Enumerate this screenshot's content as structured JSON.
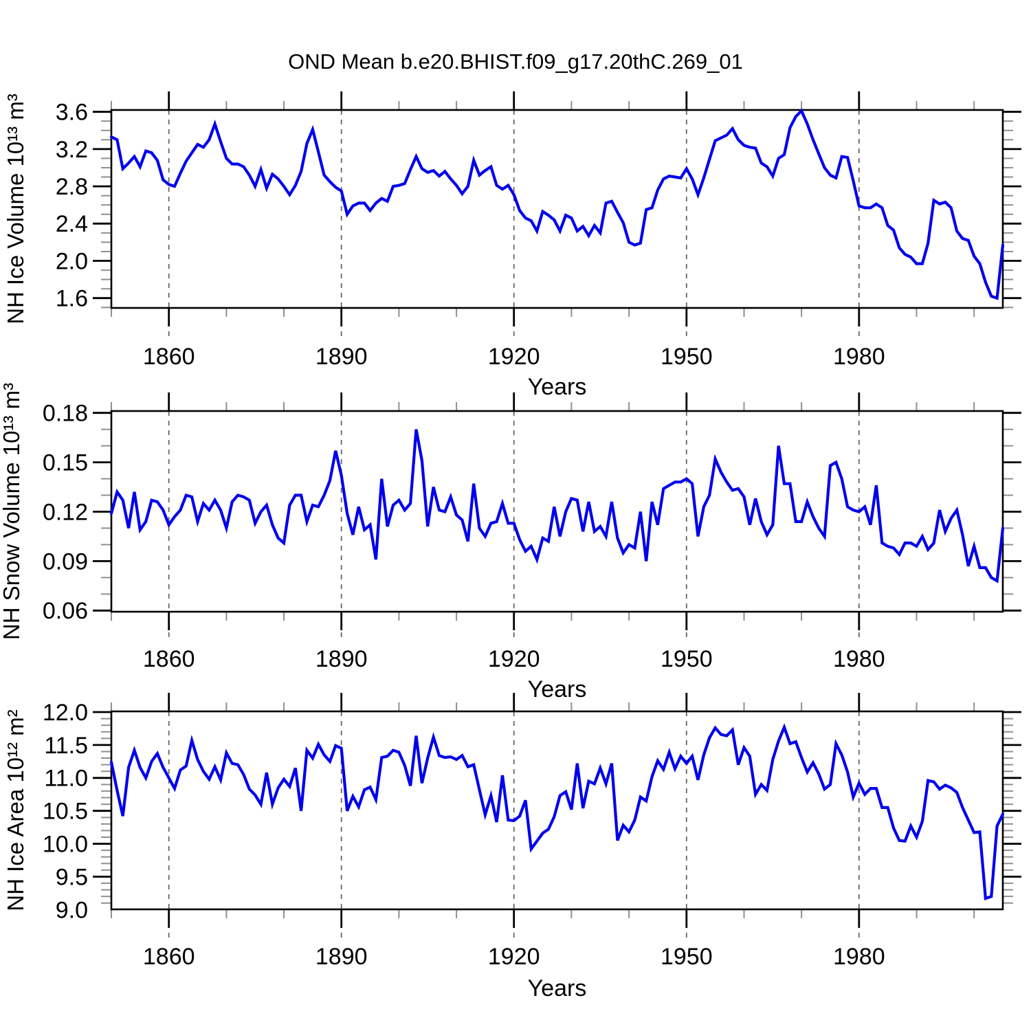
{
  "header": {
    "title": "OND Mean b.e20.BHIST.f09_g17.20thC.269_01"
  },
  "chart_data": [
    {
      "type": "line",
      "panel": "nh-ice-volume",
      "ylabel": "NH Ice Volume 10¹³ m³",
      "xlabel": "Years",
      "x_start": 1850,
      "x_step": 1,
      "xlim": [
        1850,
        2005
      ],
      "ylim": [
        1.49,
        3.62
      ],
      "xticks_major": [
        1860,
        1890,
        1920,
        1950,
        1980
      ],
      "xtick_labels": [
        "1860",
        "1890",
        "1920",
        "1950",
        "1980"
      ],
      "xtick_minor_step": 10,
      "yticks_major": [
        3.6,
        3.2,
        2.8,
        2.4,
        2.0,
        1.6
      ],
      "ytick_labels": [
        "3.6",
        "3.2",
        "2.8",
        "2.4",
        "2.0",
        "1.6"
      ],
      "ytick_minor_step": 0.1,
      "grid": "dashed vertical at major x ticks",
      "legend": "none",
      "line_color": "#0000ee",
      "values": [
        3.33,
        3.3,
        2.99,
        3.05,
        3.12,
        3.01,
        3.18,
        3.16,
        3.08,
        2.87,
        2.82,
        2.8,
        2.94,
        3.07,
        3.16,
        3.25,
        3.22,
        3.3,
        3.47,
        3.28,
        3.1,
        3.04,
        3.04,
        3.01,
        2.92,
        2.8,
        2.98,
        2.78,
        2.93,
        2.88,
        2.8,
        2.71,
        2.81,
        2.96,
        3.26,
        3.41,
        3.17,
        2.92,
        2.85,
        2.79,
        2.75,
        2.5,
        2.59,
        2.62,
        2.62,
        2.54,
        2.62,
        2.67,
        2.64,
        2.8,
        2.81,
        2.83,
        2.98,
        3.12,
        2.99,
        2.95,
        2.97,
        2.91,
        2.96,
        2.88,
        2.81,
        2.72,
        2.8,
        3.08,
        2.92,
        2.97,
        3.01,
        2.81,
        2.77,
        2.81,
        2.71,
        2.54,
        2.46,
        2.43,
        2.32,
        2.53,
        2.49,
        2.44,
        2.32,
        2.49,
        2.46,
        2.32,
        2.37,
        2.27,
        2.38,
        2.3,
        2.62,
        2.64,
        2.52,
        2.41,
        2.2,
        2.17,
        2.19,
        2.55,
        2.57,
        2.76,
        2.88,
        2.91,
        2.9,
        2.89,
        2.99,
        2.88,
        2.71,
        2.89,
        3.09,
        3.29,
        3.32,
        3.35,
        3.42,
        3.3,
        3.24,
        3.22,
        3.21,
        3.05,
        3.01,
        2.91,
        3.1,
        3.14,
        3.43,
        3.55,
        3.61,
        3.47,
        3.3,
        3.15,
        3.0,
        2.92,
        2.89,
        3.12,
        3.11,
        2.86,
        2.59,
        2.57,
        2.57,
        2.61,
        2.57,
        2.38,
        2.33,
        2.14,
        2.07,
        2.04,
        1.97,
        1.97,
        2.19,
        2.65,
        2.61,
        2.63,
        2.57,
        2.32,
        2.24,
        2.22,
        2.05,
        1.97,
        1.77,
        1.62,
        1.6,
        2.17
      ]
    },
    {
      "type": "line",
      "panel": "nh-snow-volume",
      "ylabel": "NH Snow Volume 10¹³ m³",
      "xlabel": "Years",
      "x_start": 1850,
      "x_step": 1,
      "xlim": [
        1850,
        2005
      ],
      "ylim": [
        0.059,
        0.181
      ],
      "xticks_major": [
        1860,
        1890,
        1920,
        1950,
        1980
      ],
      "xtick_labels": [
        "1860",
        "1890",
        "1920",
        "1950",
        "1980"
      ],
      "xtick_minor_step": 10,
      "yticks_major": [
        0.18,
        0.15,
        0.12,
        0.09,
        0.06
      ],
      "ytick_labels": [
        "0.18",
        "0.15",
        "0.12",
        "0.09",
        "0.06"
      ],
      "ytick_minor_step": 0.01,
      "grid": "dashed vertical at major x ticks",
      "legend": "none",
      "line_color": "#0000ee",
      "values": [
        0.119,
        0.132,
        0.127,
        0.11,
        0.132,
        0.109,
        0.114,
        0.127,
        0.126,
        0.121,
        0.112,
        0.117,
        0.121,
        0.13,
        0.129,
        0.114,
        0.125,
        0.121,
        0.127,
        0.121,
        0.11,
        0.126,
        0.13,
        0.129,
        0.127,
        0.113,
        0.12,
        0.124,
        0.112,
        0.104,
        0.101,
        0.124,
        0.13,
        0.13,
        0.114,
        0.124,
        0.123,
        0.13,
        0.139,
        0.157,
        0.142,
        0.119,
        0.106,
        0.123,
        0.109,
        0.112,
        0.091,
        0.14,
        0.111,
        0.124,
        0.127,
        0.121,
        0.125,
        0.17,
        0.151,
        0.111,
        0.135,
        0.121,
        0.12,
        0.129,
        0.118,
        0.115,
        0.102,
        0.137,
        0.11,
        0.105,
        0.113,
        0.114,
        0.125,
        0.113,
        0.113,
        0.103,
        0.096,
        0.099,
        0.091,
        0.104,
        0.102,
        0.123,
        0.105,
        0.12,
        0.128,
        0.127,
        0.108,
        0.126,
        0.108,
        0.111,
        0.105,
        0.126,
        0.104,
        0.095,
        0.1,
        0.098,
        0.12,
        0.09,
        0.126,
        0.112,
        0.134,
        0.136,
        0.138,
        0.138,
        0.14,
        0.137,
        0.105,
        0.123,
        0.13,
        0.152,
        0.144,
        0.138,
        0.133,
        0.134,
        0.129,
        0.112,
        0.128,
        0.114,
        0.106,
        0.112,
        0.16,
        0.137,
        0.137,
        0.114,
        0.114,
        0.126,
        0.117,
        0.11,
        0.105,
        0.148,
        0.15,
        0.14,
        0.123,
        0.121,
        0.12,
        0.123,
        0.112,
        0.136,
        0.101,
        0.099,
        0.098,
        0.094,
        0.101,
        0.101,
        0.099,
        0.105,
        0.097,
        0.101,
        0.121,
        0.108,
        0.116,
        0.121,
        0.106,
        0.087,
        0.099,
        0.086,
        0.086,
        0.08,
        0.078,
        0.11
      ]
    },
    {
      "type": "line",
      "panel": "nh-ice-area",
      "ylabel": "NH Ice Area 10¹² m²",
      "xlabel": "Years",
      "x_start": 1850,
      "x_step": 1,
      "xlim": [
        1850,
        2005
      ],
      "ylim": [
        9.0,
        12.0
      ],
      "xticks_major": [
        1860,
        1890,
        1920,
        1950,
        1980
      ],
      "xtick_labels": [
        "1860",
        "1890",
        "1920",
        "1950",
        "1980"
      ],
      "xtick_minor_step": 10,
      "yticks_major": [
        12.0,
        11.5,
        11.0,
        10.5,
        10.0,
        9.5,
        9.0
      ],
      "ytick_labels": [
        "12.0",
        "11.5",
        "11.0",
        "10.5",
        "10.0",
        "9.5",
        "9.0"
      ],
      "ytick_minor_step": 0.1,
      "grid": "dashed vertical at major x ticks",
      "legend": "none",
      "line_color": "#0000ee",
      "values": [
        11.24,
        10.81,
        10.42,
        11.16,
        11.42,
        11.16,
        11.0,
        11.25,
        11.37,
        11.16,
        11.0,
        10.84,
        11.12,
        11.18,
        11.57,
        11.28,
        11.1,
        10.98,
        11.17,
        10.97,
        11.38,
        11.22,
        11.2,
        11.05,
        10.83,
        10.74,
        10.6,
        11.08,
        10.6,
        10.85,
        10.98,
        10.87,
        11.15,
        10.5,
        11.42,
        11.3,
        11.51,
        11.35,
        11.25,
        11.49,
        11.45,
        10.5,
        10.72,
        10.56,
        10.82,
        10.86,
        10.67,
        11.31,
        11.33,
        11.42,
        11.39,
        11.19,
        10.88,
        11.64,
        10.92,
        11.3,
        11.62,
        11.34,
        11.31,
        11.32,
        11.28,
        11.34,
        11.17,
        11.2,
        10.82,
        10.44,
        10.73,
        10.33,
        11.04,
        10.36,
        10.35,
        10.42,
        10.66,
        9.92,
        10.04,
        10.16,
        10.22,
        10.41,
        10.73,
        10.79,
        10.52,
        11.22,
        10.54,
        10.95,
        10.91,
        11.15,
        10.91,
        11.22,
        10.05,
        10.28,
        10.18,
        10.36,
        10.71,
        10.65,
        11.02,
        11.26,
        11.13,
        11.39,
        11.14,
        11.33,
        11.22,
        11.33,
        10.97,
        11.35,
        11.61,
        11.76,
        11.66,
        11.64,
        11.73,
        11.2,
        11.46,
        11.33,
        10.75,
        10.9,
        10.81,
        11.28,
        11.56,
        11.77,
        11.52,
        11.55,
        11.31,
        11.09,
        11.23,
        11.06,
        10.83,
        10.9,
        11.52,
        11.35,
        11.09,
        10.71,
        10.92,
        10.75,
        10.84,
        10.84,
        10.55,
        10.55,
        10.24,
        10.05,
        10.04,
        10.27,
        10.1,
        10.34,
        10.96,
        10.94,
        10.83,
        10.89,
        10.85,
        10.78,
        10.55,
        10.36,
        10.17,
        10.18,
        9.17,
        9.2,
        10.27,
        10.45
      ]
    }
  ]
}
